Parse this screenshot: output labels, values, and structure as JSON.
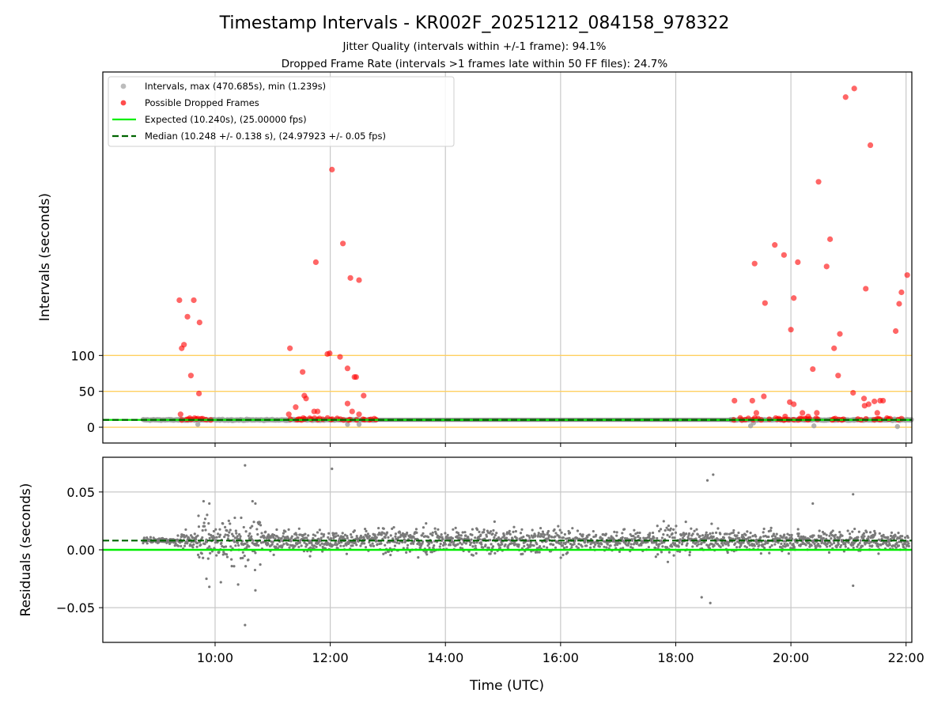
{
  "chart_data": {
    "type": "scatter",
    "title": "Timestamp Intervals - KR002F_20251212_084158_978322",
    "subtitle_lines": [
      "Jitter Quality (intervals within +/-1 frame): 94.1%",
      "Dropped Frame Rate (intervals >1 frames late within 50 FF files): 24.7%"
    ],
    "xlabel": "Time (UTC)",
    "x_ticks": [
      "10:00",
      "12:00",
      "14:00",
      "16:00",
      "18:00",
      "20:00",
      "22:00"
    ],
    "x_tick_hours": [
      10,
      12,
      14,
      16,
      18,
      20,
      22
    ],
    "xlim_hours": [
      8.05,
      22.1
    ],
    "top_panel": {
      "ylabel": "Intervals (seconds)",
      "y_ticks": [
        0,
        50,
        100
      ],
      "ylim": [
        -22,
        495
      ],
      "orange_hlines": [
        0,
        50,
        100
      ],
      "expected_interval": 10.24,
      "median_interval": 10.248,
      "colors": {
        "intervals": "#a0a0a0",
        "dropped": "#ff0000",
        "expected": "#00ee00",
        "median": "#006400",
        "hline": "#ffd060"
      },
      "legend": [
        {
          "kind": "marker",
          "color": "#a0a0a0",
          "label": "Intervals, max (470.685s), min (1.239s)"
        },
        {
          "kind": "marker",
          "color": "#ff0000",
          "label": "Possible Dropped Frames"
        },
        {
          "kind": "line-solid",
          "color": "#00ee00",
          "label": "Expected (10.240s), (25.00000 fps)"
        },
        {
          "kind": "line-dashed",
          "color": "#006400",
          "label": "Median (10.248 +/- 0.138 s), (24.97923 +/- 0.05 fps)"
        }
      ],
      "dropped_frames": [
        [
          9.38,
          177
        ],
        [
          9.42,
          110
        ],
        [
          9.46,
          115
        ],
        [
          9.52,
          154
        ],
        [
          9.58,
          72
        ],
        [
          9.63,
          177
        ],
        [
          9.72,
          47
        ],
        [
          9.73,
          146
        ],
        [
          9.4,
          18
        ],
        [
          11.3,
          110
        ],
        [
          11.52,
          77
        ],
        [
          11.55,
          44
        ],
        [
          11.58,
          40
        ],
        [
          11.75,
          230
        ],
        [
          11.78,
          22
        ],
        [
          11.95,
          102
        ],
        [
          11.99,
          103
        ],
        [
          12.03,
          359
        ],
        [
          12.17,
          98
        ],
        [
          12.22,
          256
        ],
        [
          12.3,
          82
        ],
        [
          12.35,
          208
        ],
        [
          12.42,
          70
        ],
        [
          12.45,
          70
        ],
        [
          12.5,
          205
        ],
        [
          12.58,
          44
        ],
        [
          12.3,
          33
        ],
        [
          12.38,
          22
        ],
        [
          11.4,
          28
        ],
        [
          11.28,
          18
        ],
        [
          11.72,
          22
        ],
        [
          12.5,
          18
        ],
        [
          19.02,
          37
        ],
        [
          19.33,
          37
        ],
        [
          19.37,
          228
        ],
        [
          19.53,
          43
        ],
        [
          19.55,
          173
        ],
        [
          19.72,
          254
        ],
        [
          19.88,
          240
        ],
        [
          19.98,
          35
        ],
        [
          20.0,
          136
        ],
        [
          20.05,
          32
        ],
        [
          20.05,
          180
        ],
        [
          20.12,
          230
        ],
        [
          20.2,
          20
        ],
        [
          20.38,
          81
        ],
        [
          20.45,
          20
        ],
        [
          20.48,
          342
        ],
        [
          20.62,
          224
        ],
        [
          20.68,
          262
        ],
        [
          20.75,
          110
        ],
        [
          20.82,
          72
        ],
        [
          20.85,
          130
        ],
        [
          20.95,
          460
        ],
        [
          21.08,
          48
        ],
        [
          21.1,
          472
        ],
        [
          21.27,
          40
        ],
        [
          21.3,
          193
        ],
        [
          21.38,
          393
        ],
        [
          21.45,
          36
        ],
        [
          21.55,
          37
        ],
        [
          21.6,
          37
        ],
        [
          21.82,
          134
        ],
        [
          21.88,
          172
        ],
        [
          21.92,
          188
        ],
        [
          22.02,
          212
        ],
        [
          21.35,
          32
        ],
        [
          21.28,
          30
        ],
        [
          21.5,
          20
        ],
        [
          20.3,
          15
        ],
        [
          19.9,
          15
        ],
        [
          19.4,
          20
        ]
      ]
    },
    "bottom_panel": {
      "ylabel": "Residuals (seconds)",
      "y_ticks": [
        0.05,
        0.0,
        -0.05
      ],
      "y_tick_labels": [
        "0.05",
        "0.00",
        "−0.05"
      ],
      "ylim": [
        -0.08,
        0.08
      ],
      "expected_residual": 0.0,
      "median_residual": 0.008,
      "point_color": "#7a7a7a",
      "outliers": [
        [
          10.52,
          0.073
        ],
        [
          12.03,
          0.07
        ],
        [
          18.65,
          0.065
        ],
        [
          18.55,
          0.06
        ],
        [
          20.38,
          0.04
        ],
        [
          21.08,
          0.048
        ],
        [
          21.08,
          -0.031
        ],
        [
          18.45,
          -0.041
        ],
        [
          18.6,
          -0.046
        ],
        [
          10.52,
          -0.065
        ],
        [
          9.8,
          0.042
        ],
        [
          9.9,
          0.04
        ],
        [
          10.65,
          0.042
        ],
        [
          10.7,
          0.04
        ],
        [
          9.9,
          -0.032
        ],
        [
          10.7,
          -0.035
        ],
        [
          9.85,
          -0.025
        ],
        [
          10.1,
          -0.028
        ],
        [
          10.4,
          -0.03
        ]
      ]
    }
  }
}
